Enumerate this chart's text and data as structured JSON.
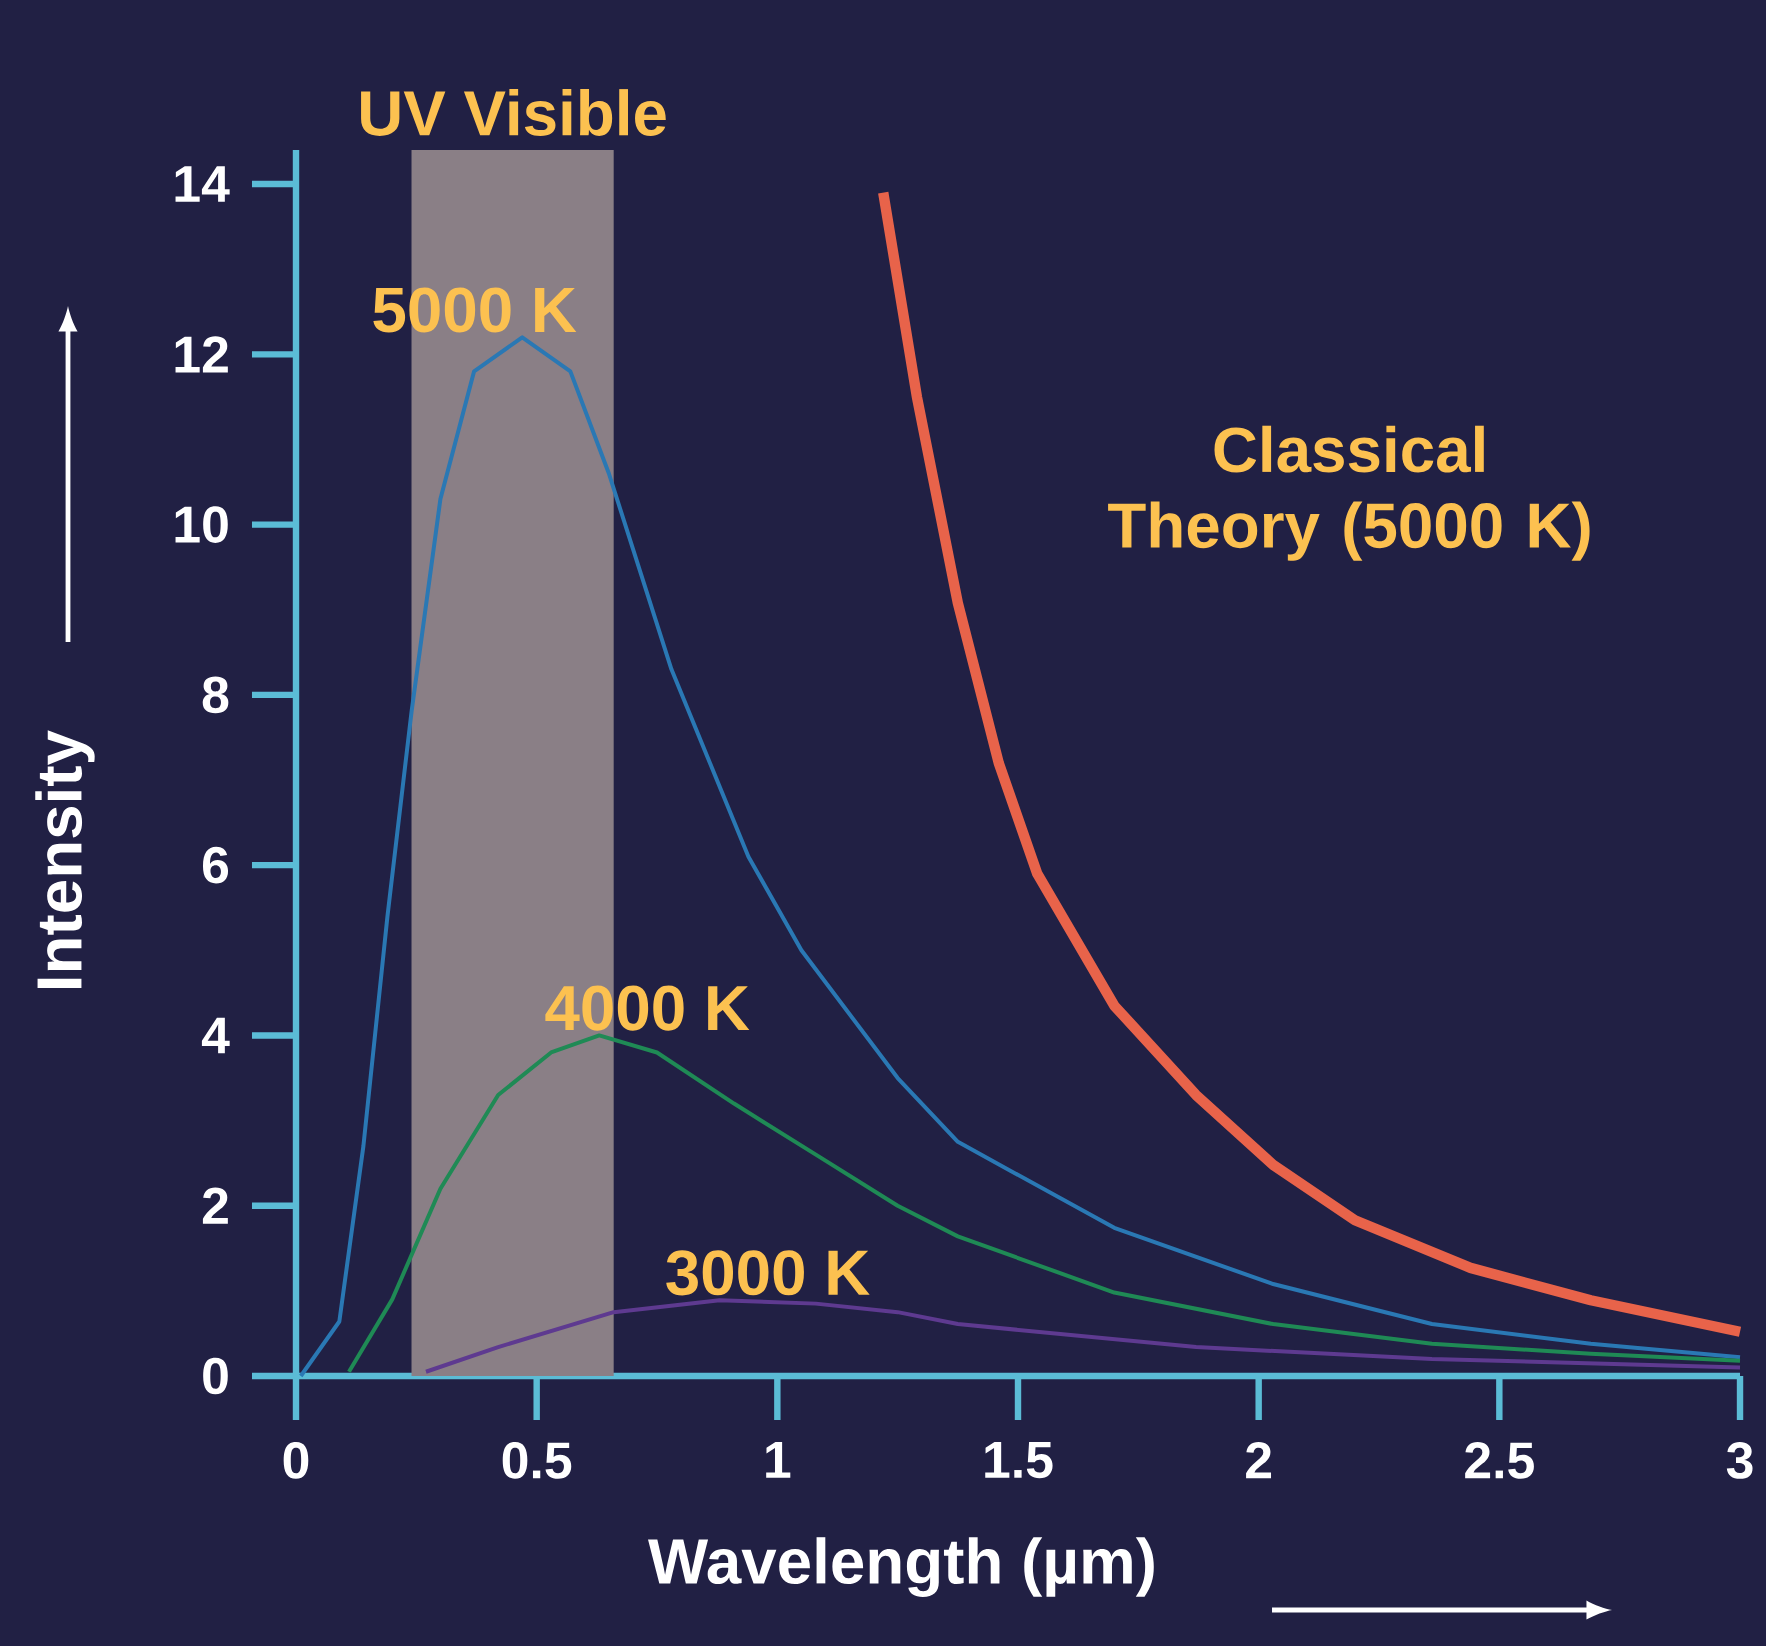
{
  "chart_data": {
    "type": "line",
    "xlabel": "Wavelength (µm)",
    "ylabel": "Intensity",
    "xlim": [
      0,
      3
    ],
    "ylim": [
      0,
      14.4
    ],
    "xticks": [
      0,
      0.5,
      1,
      1.5,
      2,
      2.5,
      3
    ],
    "yticks": [
      0,
      2,
      4,
      6,
      8,
      10,
      12,
      14
    ],
    "marker": "none",
    "line_style": "solid",
    "bands": [
      {
        "axis": "x",
        "from": 0.24,
        "to": 0.66,
        "label": "UV Visible",
        "color": "#8a7f86"
      }
    ],
    "series": [
      {
        "name": "5000 K",
        "color": "#2a78b4",
        "x": [
          0.01,
          0.09,
          0.14,
          0.19,
          0.24,
          0.3,
          0.37,
          0.47,
          0.57,
          0.65,
          0.78,
          0.94,
          1.05,
          1.25,
          1.375,
          1.7,
          2.03,
          2.36,
          2.69,
          3.0
        ],
        "values": [
          0,
          0.64,
          2.7,
          5.4,
          7.8,
          10.3,
          11.8,
          12.2,
          11.8,
          10.6,
          8.3,
          6.1,
          5.0,
          3.5,
          2.75,
          1.74,
          1.08,
          0.61,
          0.38,
          0.22
        ]
      },
      {
        "name": "4000 K",
        "color": "#1f8a55",
        "x": [
          0.11,
          0.2,
          0.3,
          0.42,
          0.53,
          0.63,
          0.75,
          0.91,
          1.08,
          1.25,
          1.375,
          1.7,
          2.03,
          2.36,
          2.69,
          3.0
        ],
        "values": [
          0.05,
          0.9,
          2.2,
          3.3,
          3.8,
          4.0,
          3.8,
          3.2,
          2.6,
          2.0,
          1.64,
          0.98,
          0.61,
          0.38,
          0.26,
          0.18
        ]
      },
      {
        "name": "3000 K",
        "color": "#5e3a90",
        "x": [
          0.27,
          0.42,
          0.66,
          0.88,
          1.08,
          1.25,
          1.375,
          1.87,
          2.36,
          3.0
        ],
        "values": [
          0.05,
          0.34,
          0.75,
          0.89,
          0.85,
          0.75,
          0.61,
          0.34,
          0.2,
          0.1
        ]
      },
      {
        "name": "Classical Theory (5000 K)",
        "color": "#e8634a",
        "x": [
          1.22,
          1.29,
          1.375,
          1.46,
          1.54,
          1.7,
          1.87,
          2.03,
          2.2,
          2.44,
          2.69,
          3.0
        ],
        "values": [
          13.9,
          11.5,
          9.08,
          7.2,
          5.9,
          4.35,
          3.3,
          2.48,
          1.83,
          1.27,
          0.89,
          0.52
        ]
      }
    ]
  }
}
